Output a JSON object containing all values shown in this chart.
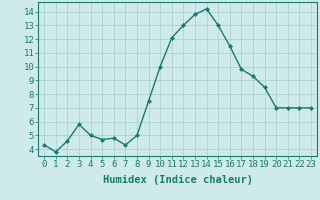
{
  "x": [
    0,
    1,
    2,
    3,
    4,
    5,
    6,
    7,
    8,
    9,
    10,
    11,
    12,
    13,
    14,
    15,
    16,
    17,
    18,
    19,
    20,
    21,
    22,
    23
  ],
  "y": [
    4.3,
    3.8,
    4.6,
    5.8,
    5.0,
    4.7,
    4.8,
    4.3,
    5.0,
    7.5,
    10.0,
    12.1,
    13.0,
    13.8,
    14.2,
    13.0,
    11.5,
    9.8,
    9.3,
    8.5,
    7.0,
    7.0,
    7.0,
    7.0
  ],
  "line_color": "#1a7a6e",
  "marker": "D",
  "marker_size": 2.0,
  "background_color": "#ceeaea",
  "grid_color": "#aacccc",
  "xlabel": "Humidex (Indice chaleur)",
  "ylim": [
    3.5,
    14.7
  ],
  "xlim": [
    -0.5,
    23.5
  ],
  "yticks": [
    4,
    5,
    6,
    7,
    8,
    9,
    10,
    11,
    12,
    13,
    14
  ],
  "xticks": [
    0,
    1,
    2,
    3,
    4,
    5,
    6,
    7,
    8,
    9,
    10,
    11,
    12,
    13,
    14,
    15,
    16,
    17,
    18,
    19,
    20,
    21,
    22,
    23
  ],
  "xlabel_fontsize": 7.5,
  "tick_fontsize": 6.5,
  "line_width": 1.0
}
